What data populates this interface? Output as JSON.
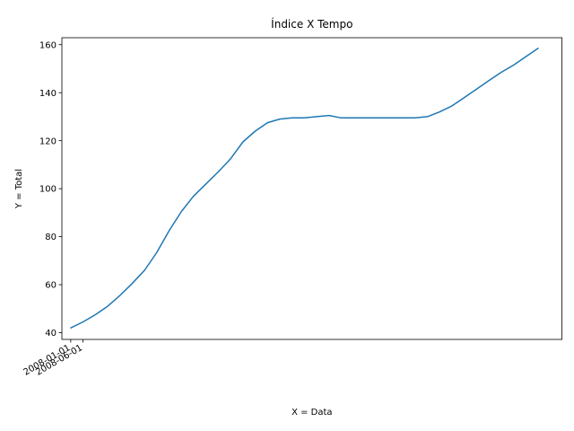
{
  "chart_data": {
    "type": "line",
    "title": "Índice X Tempo",
    "xlabel": "X = Data",
    "ylabel": "Y = Total",
    "x_tick_labels": [
      "2008-01-01",
      "2008-06-01"
    ],
    "y_ticks": [
      40,
      60,
      80,
      100,
      120,
      140,
      160
    ],
    "ylim": [
      37.2,
      162.9
    ],
    "xlim": [
      -3.6,
      199.7
    ],
    "grid": false,
    "line_color": "#1f77b4",
    "series": [
      {
        "x": [
          0,
          5,
          10,
          15,
          20,
          25,
          30,
          35,
          40,
          45,
          50,
          55,
          60,
          65,
          70,
          75,
          80,
          85,
          90,
          95,
          100,
          105,
          110,
          115,
          120,
          125,
          130,
          135,
          140,
          145,
          150,
          155,
          160,
          165,
          170,
          175,
          180,
          185,
          190
        ],
        "values": [
          42,
          44.5,
          47.5,
          51,
          55.5,
          60.5,
          66,
          73.5,
          82.5,
          90.5,
          97,
          102,
          107,
          112.5,
          119.5,
          124,
          127.5,
          129,
          129.5,
          129.5,
          130,
          130.5,
          129.5,
          129.5,
          129.5,
          129.5,
          129.5,
          129.5,
          129.5,
          130,
          132,
          134.5,
          138,
          141.5,
          145,
          148.5,
          151.5,
          155,
          158.5
        ]
      }
    ]
  }
}
